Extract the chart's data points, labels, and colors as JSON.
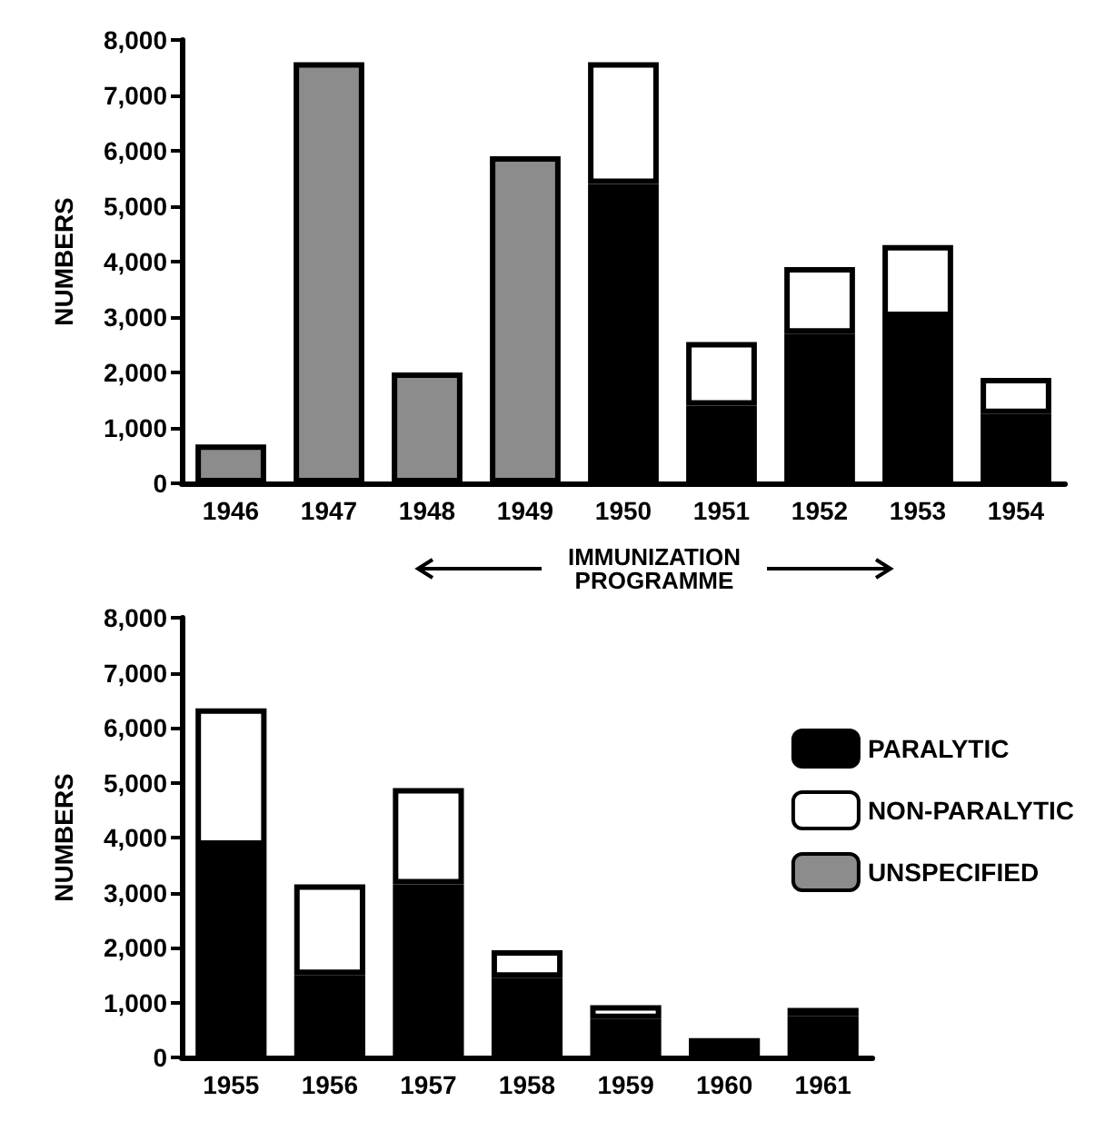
{
  "chart_data": [
    {
      "type": "bar",
      "stacked": true,
      "ylabel": "NUMBERS",
      "categories": [
        "1946",
        "1947",
        "1948",
        "1949",
        "1950",
        "1951",
        "1952",
        "1953",
        "1954"
      ],
      "ylim": [
        0,
        8000
      ],
      "yticks": [
        0,
        {
          "value": 1000,
          "label": "1,000"
        },
        {
          "value": 2000,
          "label": "2,000"
        },
        {
          "value": 3000,
          "label": "3,000"
        },
        {
          "value": 4000,
          "label": "4,000"
        },
        {
          "value": 5000,
          "label": "5,000"
        },
        {
          "value": 6000,
          "label": "6,000"
        },
        {
          "value": 7000,
          "label": "7,000"
        },
        {
          "value": 8000,
          "label": "8,000"
        }
      ],
      "grid": false,
      "legend": false,
      "series": [
        {
          "color": "#000000",
          "values": [
            null,
            null,
            null,
            null,
            5400,
            1400,
            2700,
            3000,
            1250
          ]
        },
        {
          "color": "#ffffff",
          "values": [
            null,
            null,
            null,
            null,
            2200,
            1150,
            1200,
            1300,
            650
          ]
        },
        {
          "color": "#8c8c8c",
          "values": [
            700,
            7600,
            2000,
            5900,
            null,
            null,
            null,
            null,
            null
          ]
        }
      ]
    },
    {
      "type": "bar",
      "stacked": true,
      "ylabel": "NUMBERS",
      "categories": [
        "1955",
        "1956",
        "1957",
        "1958",
        "1959",
        "1960",
        "1961"
      ],
      "ylim": [
        0,
        8000
      ],
      "yticks": [
        0,
        {
          "value": 1000,
          "label": "1,000"
        },
        {
          "value": 2000,
          "label": "2,000"
        },
        {
          "value": 3000,
          "label": "3,000"
        },
        {
          "value": 4000,
          "label": "4,000"
        },
        {
          "value": 5000,
          "label": "5,000"
        },
        {
          "value": 6000,
          "label": "6,000"
        },
        {
          "value": 7000,
          "label": "7,000"
        },
        {
          "value": 8000,
          "label": "8,000"
        }
      ],
      "grid": false,
      "legend": "right",
      "annotations": [
        "IMMUNIZATION PROGRAMME"
      ],
      "series": [
        {
          "name": "PARALYTIC",
          "color": "#000000",
          "values": [
            3850,
            1500,
            3150,
            1450,
            700,
            250,
            750
          ]
        },
        {
          "name": "NON-PARALYTIC",
          "color": "#ffffff",
          "values": [
            2500,
            1650,
            1750,
            500,
            250,
            100,
            150
          ]
        },
        {
          "name": "UNSPECIFIED",
          "color": "#8c8c8c",
          "values": [
            null,
            null,
            null,
            null,
            null,
            null,
            null
          ]
        }
      ]
    }
  ]
}
